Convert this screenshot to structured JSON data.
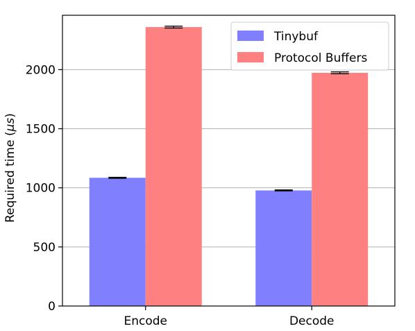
{
  "chart_data": {
    "type": "bar",
    "title": "",
    "xlabel": "",
    "ylabel": "Required time (",
    "ylabel_mu": "μs",
    "ylabel_close": ")",
    "categories": [
      "Encode",
      "Decode"
    ],
    "series": [
      {
        "name": "Tinybuf",
        "values": [
          1085,
          978
        ],
        "errors": [
          4,
          4
        ],
        "color": "#8080ff"
      },
      {
        "name": "Protocol Buffers",
        "values": [
          2360,
          1973
        ],
        "errors": [
          8,
          8
        ],
        "color": "#ff8080"
      }
    ],
    "ylim": [
      0,
      2460
    ],
    "yticks": [
      0,
      500,
      1000,
      1500,
      2000
    ],
    "ytick_labels": [
      "0",
      "500",
      "1000",
      "1500",
      "2000"
    ],
    "grid": "y",
    "legend_position": "top-right"
  }
}
